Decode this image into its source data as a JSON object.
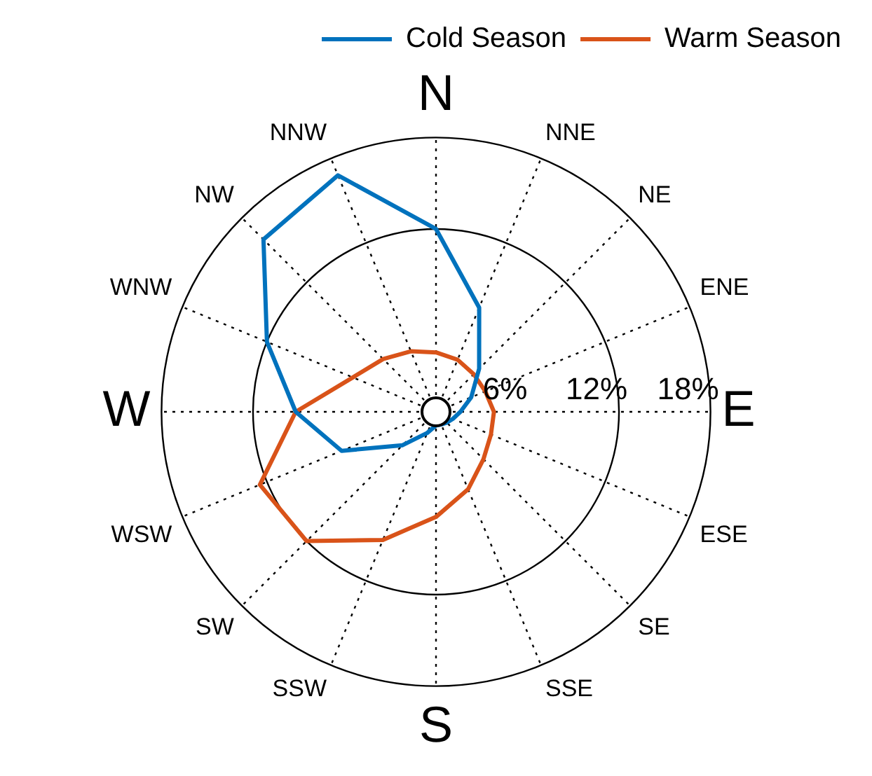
{
  "chart_data": {
    "type": "radar",
    "categories": [
      "N",
      "NNE",
      "NE",
      "ENE",
      "E",
      "ESE",
      "SE",
      "SSE",
      "S",
      "SSW",
      "SW",
      "WSW",
      "W",
      "WNW",
      "NW",
      "NNW"
    ],
    "series": [
      {
        "name": "Cold Season",
        "color": "#0072bd",
        "values": [
          12,
          7.4,
          4,
          2.5,
          1.6,
          1.2,
          1,
          0.9,
          0.9,
          1.5,
          3.1,
          6.7,
          9.2,
          12,
          16,
          16.8
        ]
      },
      {
        "name": "Warm Season",
        "color": "#d95319",
        "values": [
          3.9,
          3.7,
          3.5,
          3.5,
          3.8,
          3.9,
          4.4,
          5.5,
          6.9,
          9.1,
          12,
          12.5,
          9.2,
          5.9,
          4.9,
          4.3
        ]
      }
    ],
    "ylim": [
      0,
      18
    ],
    "yticks": [
      {
        "value": 6,
        "label": "6%"
      },
      {
        "value": 12,
        "label": "12%"
      },
      {
        "value": 18,
        "label": "18%"
      }
    ],
    "grid": true,
    "legend": "top right",
    "marker": "none",
    "line_style": "solid"
  }
}
